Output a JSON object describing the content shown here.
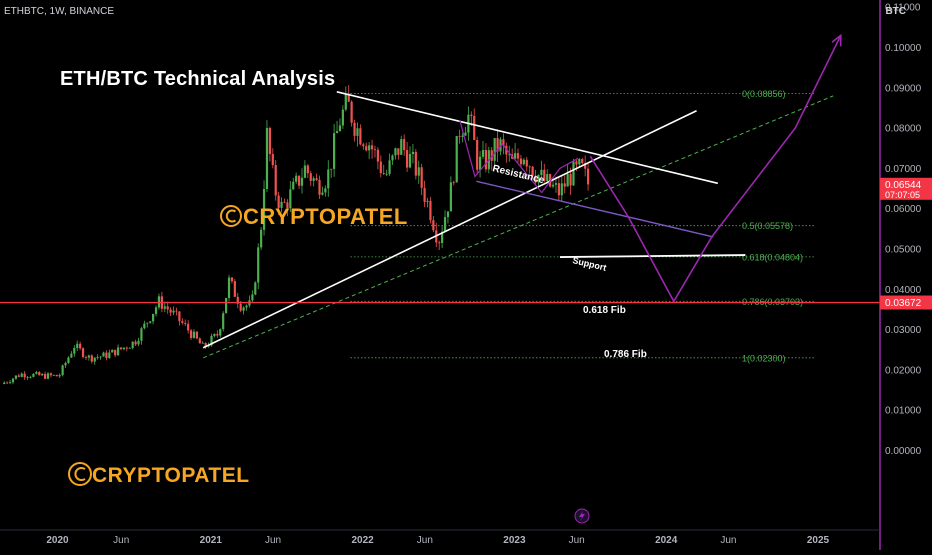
{
  "header": {
    "symbol": "ETHBTC, 1W, BINANCE",
    "currency": "BTC"
  },
  "title": "ETH/BTC Technical Analysis",
  "watermark": {
    "brand_main": "CRYPTOPATEL",
    "brand_bottom": "CRYPTOPATEL"
  },
  "colors": {
    "background": "#000000",
    "up_candle": "#4caf50",
    "down_candle": "#ef5350",
    "fib_line": "#4caf50",
    "resistance": "#ffffff",
    "projection": "#9c27b0",
    "support": "#7e57c2",
    "price_line": "#f23645",
    "brand": "#f5a623",
    "axis_border": "#9c27b0"
  },
  "chart_data": {
    "type": "candlestick",
    "title": "ETH/BTC Technical Analysis",
    "ylim": [
      -0.006,
      0.112
    ],
    "y_ticks": [
      "0.11000",
      "0.10000",
      "0.09000",
      "0.08000",
      "0.07000",
      "0.06000",
      "0.05000",
      "0.04000",
      "0.03000",
      "0.02000",
      "0.01000",
      "0.00000"
    ],
    "x_ticks": [
      {
        "label": "2020",
        "t": 2019.99
      },
      {
        "label": "Jun",
        "t": 2020.41
      },
      {
        "label": "2021",
        "t": 2021.0
      },
      {
        "label": "Jun",
        "t": 2021.41
      },
      {
        "label": "2022",
        "t": 2022.0
      },
      {
        "label": "Jun",
        "t": 2022.41
      },
      {
        "label": "2023",
        "t": 2023.0
      },
      {
        "label": "Jun",
        "t": 2023.41
      },
      {
        "label": "2024",
        "t": 2024.0
      },
      {
        "label": "Jun",
        "t": 2024.41
      },
      {
        "label": "2025",
        "t": 2025.0
      }
    ],
    "price_anchors": [
      {
        "t": 2019.62,
        "v": 0.0165
      },
      {
        "t": 2019.75,
        "v": 0.019
      },
      {
        "t": 2019.9,
        "v": 0.0185
      },
      {
        "t": 2020.0,
        "v": 0.0185
      },
      {
        "t": 2020.1,
        "v": 0.026
      },
      {
        "t": 2020.2,
        "v": 0.023
      },
      {
        "t": 2020.3,
        "v": 0.0235
      },
      {
        "t": 2020.4,
        "v": 0.025
      },
      {
        "t": 2020.5,
        "v": 0.027
      },
      {
        "t": 2020.58,
        "v": 0.032
      },
      {
        "t": 2020.66,
        "v": 0.037
      },
      {
        "t": 2020.75,
        "v": 0.034
      },
      {
        "t": 2020.85,
        "v": 0.03
      },
      {
        "t": 2020.95,
        "v": 0.0255
      },
      {
        "t": 2021.05,
        "v": 0.029
      },
      {
        "t": 2021.12,
        "v": 0.042
      },
      {
        "t": 2021.2,
        "v": 0.036
      },
      {
        "t": 2021.27,
        "v": 0.036
      },
      {
        "t": 2021.33,
        "v": 0.055
      },
      {
        "t": 2021.37,
        "v": 0.078
      },
      {
        "t": 2021.42,
        "v": 0.065
      },
      {
        "t": 2021.47,
        "v": 0.06
      },
      {
        "t": 2021.55,
        "v": 0.065
      },
      {
        "t": 2021.62,
        "v": 0.07
      },
      {
        "t": 2021.7,
        "v": 0.066
      },
      {
        "t": 2021.77,
        "v": 0.068
      },
      {
        "t": 2021.85,
        "v": 0.082
      },
      {
        "t": 2021.9,
        "v": 0.086
      },
      {
        "t": 2021.96,
        "v": 0.08
      },
      {
        "t": 2022.05,
        "v": 0.076
      },
      {
        "t": 2022.15,
        "v": 0.068
      },
      {
        "t": 2022.25,
        "v": 0.076
      },
      {
        "t": 2022.35,
        "v": 0.07
      },
      {
        "t": 2022.45,
        "v": 0.059
      },
      {
        "t": 2022.5,
        "v": 0.052
      },
      {
        "t": 2022.58,
        "v": 0.064
      },
      {
        "t": 2022.64,
        "v": 0.08
      },
      {
        "t": 2022.7,
        "v": 0.083
      },
      {
        "t": 2022.76,
        "v": 0.071
      },
      {
        "t": 2022.82,
        "v": 0.072
      },
      {
        "t": 2022.9,
        "v": 0.076
      },
      {
        "t": 2022.98,
        "v": 0.071
      },
      {
        "t": 2023.06,
        "v": 0.074
      },
      {
        "t": 2023.14,
        "v": 0.069
      },
      {
        "t": 2023.22,
        "v": 0.066
      },
      {
        "t": 2023.3,
        "v": 0.064
      },
      {
        "t": 2023.36,
        "v": 0.068
      },
      {
        "t": 2023.44,
        "v": 0.07
      },
      {
        "t": 2023.5,
        "v": 0.065
      }
    ],
    "fib_levels": [
      {
        "label": "0(0.08856)",
        "value": 0.08856
      },
      {
        "label": "0.5(0.05578)",
        "value": 0.05578
      },
      {
        "label": "0.618(0.04804)",
        "value": 0.04804
      },
      {
        "label": "0.786(0.03703)",
        "value": 0.03703
      },
      {
        "label": "1(0.02300)",
        "value": 0.023
      }
    ],
    "fib_start_t": 2021.92,
    "fib_end_t": 2024.98,
    "resistance_line": {
      "label": "Resistance",
      "points": [
        {
          "t": 2021.83,
          "v": 0.089
        },
        {
          "t": 2024.34,
          "v": 0.0663
        }
      ]
    },
    "support_line": {
      "label": "Support",
      "points": [
        {
          "t": 2022.75,
          "v": 0.0668
        },
        {
          "t": 2024.31,
          "v": 0.053
        }
      ]
    },
    "uptrend_line": {
      "points": [
        {
          "t": 2020.95,
          "v": 0.0255
        },
        {
          "t": 2024.2,
          "v": 0.0843
        }
      ]
    },
    "uptrend_dashed": {
      "points": [
        {
          "t": 2020.95,
          "v": 0.023
        },
        {
          "t": 2025.1,
          "v": 0.088
        }
      ]
    },
    "fib_0618_line": {
      "label": "0.618 Fib",
      "points": [
        {
          "t": 2023.3,
          "v": 0.048
        },
        {
          "t": 2024.52,
          "v": 0.0485
        }
      ]
    },
    "fib_0786_label": "0.786 Fib",
    "projection_path": [
      {
        "t": 2023.5,
        "v": 0.073
      },
      {
        "t": 2023.75,
        "v": 0.058
      },
      {
        "t": 2024.05,
        "v": 0.037
      },
      {
        "t": 2024.3,
        "v": 0.053
      },
      {
        "t": 2024.85,
        "v": 0.08
      },
      {
        "t": 2025.15,
        "v": 0.103
      }
    ],
    "current_price": {
      "label": "0.06544",
      "value": 0.06544,
      "countdown": "07:07:05"
    },
    "marked_price": {
      "label": "0.03672",
      "value": 0.03672
    }
  }
}
